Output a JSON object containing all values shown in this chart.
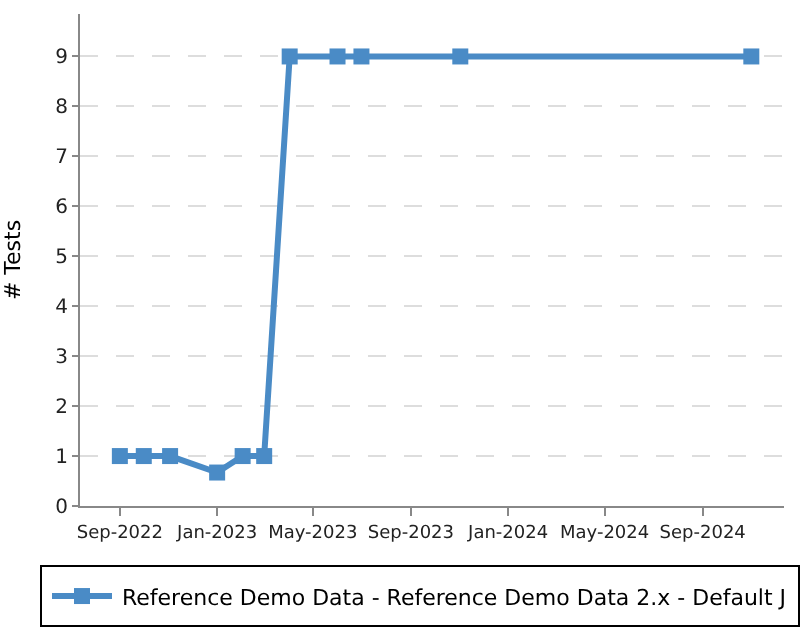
{
  "chart_data": {
    "type": "line",
    "ylabel": "# Tests",
    "x": [
      "2022-09-01",
      "2022-10-01",
      "2022-11-03",
      "2023-01-01",
      "2023-02-02",
      "2023-03-01",
      "2023-04-02",
      "2023-06-01",
      "2023-07-01",
      "2023-11-02",
      "2024-11-01"
    ],
    "series": [
      {
        "name": "Reference Demo Data - Reference Demo Data 2.x - Default J",
        "color": "#4a8bc6",
        "values": [
          1,
          1,
          1,
          0.67,
          1,
          1,
          9,
          9,
          9,
          9,
          9
        ]
      }
    ],
    "xlim": [
      "2022-07-13",
      "2024-12-12"
    ],
    "xticks": [
      {
        "value": "2022-09-01",
        "label": "Sep-2022"
      },
      {
        "value": "2023-01-01",
        "label": "Jan-2023"
      },
      {
        "value": "2023-05-01",
        "label": "May-2023"
      },
      {
        "value": "2023-09-01",
        "label": "Sep-2023"
      },
      {
        "value": "2024-01-01",
        "label": "Jan-2024"
      },
      {
        "value": "2024-05-01",
        "label": "May-2024"
      },
      {
        "value": "2024-09-01",
        "label": "Sep-2024"
      }
    ],
    "ylim": [
      0,
      9.85
    ],
    "yticks": [
      0,
      1,
      2,
      3,
      4,
      5,
      6,
      7,
      8,
      9
    ],
    "grid": "y",
    "legend": "bottom",
    "marker": "square",
    "line_style": "solid"
  }
}
